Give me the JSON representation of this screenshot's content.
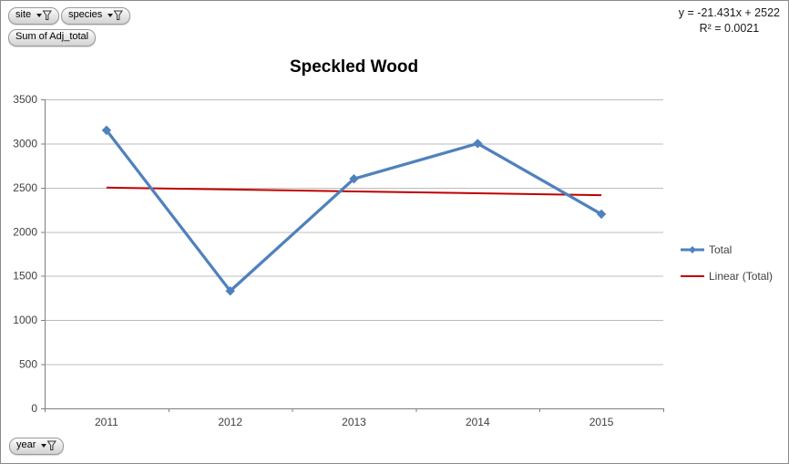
{
  "pivot_filters": {
    "site": "site",
    "species": "species",
    "values": "Sum of Adj_total",
    "axis": "year"
  },
  "trendline_label": {
    "equation": "y = -21.431x + 2522",
    "r_squared": "R² = 0.0021"
  },
  "chart_data": {
    "type": "line",
    "title": "Speckled Wood",
    "categories": [
      "2011",
      "2012",
      "2013",
      "2014",
      "2015"
    ],
    "series": [
      {
        "name": "Total",
        "values": [
          3150,
          1330,
          2600,
          3000,
          2200
        ],
        "color": "#4F81BD",
        "marker": "diamond"
      }
    ],
    "trendline": {
      "name": "Linear (Total)",
      "type": "linear",
      "slope": -21.431,
      "intercept": 2522,
      "r_squared": 0.0021,
      "color": "#C00000"
    },
    "xlabel": "",
    "ylabel": "",
    "ylim": [
      0,
      3500
    ],
    "ytick_step": 500,
    "grid": true,
    "legend_position": "right",
    "colors": {
      "gridline": "#BDBDBD",
      "axis": "#7F7F7F",
      "tick_label": "#404040"
    }
  }
}
